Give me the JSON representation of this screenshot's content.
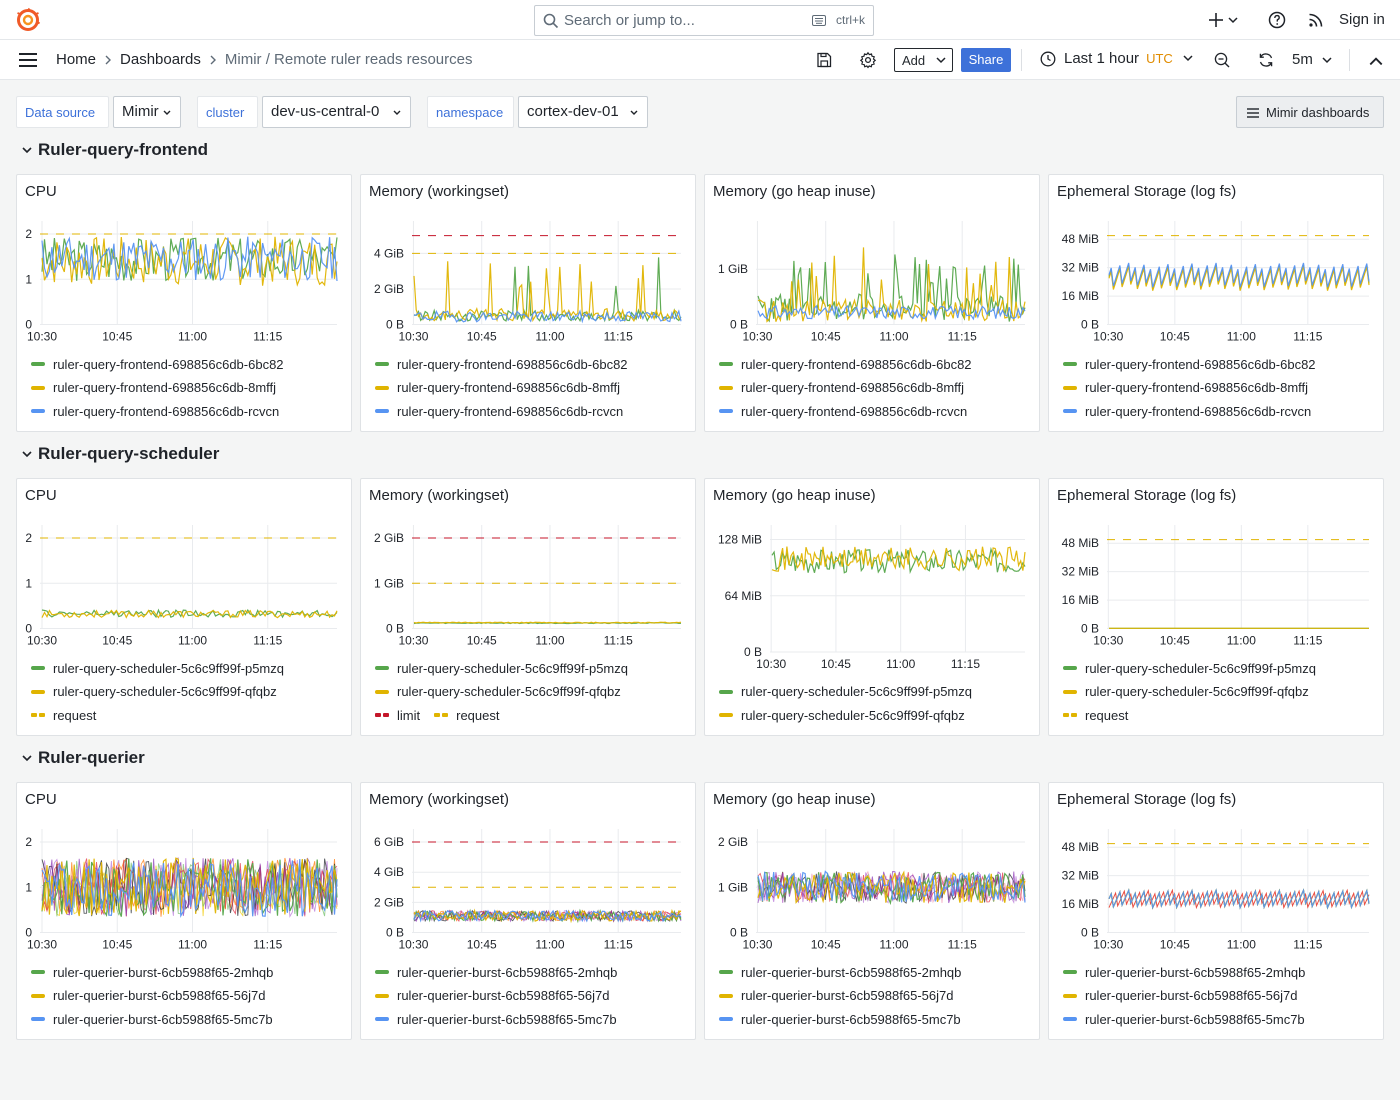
{
  "topbar": {
    "logo_icon": "grafana-logo-icon",
    "search_placeholder": "Search or jump to...",
    "search_shortcut": "ctrl+k",
    "sign_in": "Sign in"
  },
  "nav": {
    "breadcrumbs": [
      "Home",
      "Dashboards",
      "Mimir / Remote ruler reads resources"
    ],
    "add_label": "Add",
    "share_label": "Share",
    "time_range": "Last 1 hour",
    "timezone": "UTC",
    "refresh_interval": "5m"
  },
  "variables": [
    {
      "label": "Data source",
      "value": "Mimir"
    },
    {
      "label": "cluster",
      "value": "dev-us-central-0"
    },
    {
      "label": "namespace",
      "value": "cortex-dev-01"
    }
  ],
  "mimir_dashboards_label": "Mimir dashboards",
  "colors": {
    "green": "#56a64b",
    "yellow": "#e0b400",
    "blue": "#5794f2",
    "red": "#c4162a",
    "accent": "#3d71d9"
  },
  "rows": [
    {
      "title": "Ruler-query-frontend"
    },
    {
      "title": "Ruler-query-scheduler"
    },
    {
      "title": "Ruler-querier"
    }
  ],
  "panels": [
    {
      "title": "CPU",
      "legend": [
        {
          "label": "ruler-query-frontend-698856c6db-6bc82",
          "color": "#56a64b",
          "style": "solid"
        },
        {
          "label": "ruler-query-frontend-698856c6db-8mffj",
          "color": "#e0b400",
          "style": "solid"
        },
        {
          "label": "ruler-query-frontend-698856c6db-rcvcn",
          "color": "#5794f2",
          "style": "solid"
        }
      ]
    },
    {
      "title": "Memory (workingset)",
      "legend": [
        {
          "label": "ruler-query-frontend-698856c6db-6bc82",
          "color": "#56a64b",
          "style": "solid"
        },
        {
          "label": "ruler-query-frontend-698856c6db-8mffj",
          "color": "#e0b400",
          "style": "solid"
        },
        {
          "label": "ruler-query-frontend-698856c6db-rcvcn",
          "color": "#5794f2",
          "style": "solid"
        }
      ]
    },
    {
      "title": "Memory (go heap inuse)",
      "legend": [
        {
          "label": "ruler-query-frontend-698856c6db-6bc82",
          "color": "#56a64b",
          "style": "solid"
        },
        {
          "label": "ruler-query-frontend-698856c6db-8mffj",
          "color": "#e0b400",
          "style": "solid"
        },
        {
          "label": "ruler-query-frontend-698856c6db-rcvcn",
          "color": "#5794f2",
          "style": "solid"
        }
      ]
    },
    {
      "title": "Ephemeral Storage (log fs)",
      "legend": [
        {
          "label": "ruler-query-frontend-698856c6db-6bc82",
          "color": "#56a64b",
          "style": "solid"
        },
        {
          "label": "ruler-query-frontend-698856c6db-8mffj",
          "color": "#e0b400",
          "style": "solid"
        },
        {
          "label": "ruler-query-frontend-698856c6db-rcvcn",
          "color": "#5794f2",
          "style": "solid"
        }
      ]
    },
    {
      "title": "CPU",
      "legend": [
        {
          "label": "ruler-query-scheduler-5c6c9ff99f-p5mzq",
          "color": "#56a64b",
          "style": "solid"
        },
        {
          "label": "ruler-query-scheduler-5c6c9ff99f-qfqbz",
          "color": "#e0b400",
          "style": "solid"
        },
        {
          "label": "request",
          "color": "#e0b400",
          "style": "dash"
        }
      ]
    },
    {
      "title": "Memory (workingset)",
      "legend": [
        {
          "label": "ruler-query-scheduler-5c6c9ff99f-p5mzq",
          "color": "#56a64b",
          "style": "solid"
        },
        {
          "label": "ruler-query-scheduler-5c6c9ff99f-qfqbz",
          "color": "#e0b400",
          "style": "solid"
        }
      ],
      "legend_row": [
        {
          "label": "limit",
          "color": "#c4162a",
          "style": "dash"
        },
        {
          "label": "request",
          "color": "#e0b400",
          "style": "dash"
        }
      ]
    },
    {
      "title": "Memory (go heap inuse)",
      "legend": [
        {
          "label": "ruler-query-scheduler-5c6c9ff99f-p5mzq",
          "color": "#56a64b",
          "style": "solid"
        },
        {
          "label": "ruler-query-scheduler-5c6c9ff99f-qfqbz",
          "color": "#e0b400",
          "style": "solid"
        }
      ]
    },
    {
      "title": "Ephemeral Storage (log fs)",
      "legend": [
        {
          "label": "ruler-query-scheduler-5c6c9ff99f-p5mzq",
          "color": "#56a64b",
          "style": "solid"
        },
        {
          "label": "ruler-query-scheduler-5c6c9ff99f-qfqbz",
          "color": "#e0b400",
          "style": "solid"
        },
        {
          "label": "request",
          "color": "#e0b400",
          "style": "dash"
        }
      ]
    },
    {
      "title": "CPU",
      "legend": [
        {
          "label": "ruler-querier-burst-6cb5988f65-2mhqb",
          "color": "#56a64b",
          "style": "solid"
        },
        {
          "label": "ruler-querier-burst-6cb5988f65-56j7d",
          "color": "#e0b400",
          "style": "solid"
        },
        {
          "label": "ruler-querier-burst-6cb5988f65-5mc7b",
          "color": "#5794f2",
          "style": "solid"
        }
      ]
    },
    {
      "title": "Memory (workingset)",
      "legend": [
        {
          "label": "ruler-querier-burst-6cb5988f65-2mhqb",
          "color": "#56a64b",
          "style": "solid"
        },
        {
          "label": "ruler-querier-burst-6cb5988f65-56j7d",
          "color": "#e0b400",
          "style": "solid"
        },
        {
          "label": "ruler-querier-burst-6cb5988f65-5mc7b",
          "color": "#5794f2",
          "style": "solid"
        }
      ]
    },
    {
      "title": "Memory (go heap inuse)",
      "legend": [
        {
          "label": "ruler-querier-burst-6cb5988f65-2mhqb",
          "color": "#56a64b",
          "style": "solid"
        },
        {
          "label": "ruler-querier-burst-6cb5988f65-56j7d",
          "color": "#e0b400",
          "style": "solid"
        },
        {
          "label": "ruler-querier-burst-6cb5988f65-5mc7b",
          "color": "#5794f2",
          "style": "solid"
        }
      ]
    },
    {
      "title": "Ephemeral Storage (log fs)",
      "legend": [
        {
          "label": "ruler-querier-burst-6cb5988f65-2mhqb",
          "color": "#56a64b",
          "style": "solid"
        },
        {
          "label": "ruler-querier-burst-6cb5988f65-56j7d",
          "color": "#e0b400",
          "style": "solid"
        },
        {
          "label": "ruler-querier-burst-6cb5988f65-5mc7b",
          "color": "#5794f2",
          "style": "solid"
        }
      ]
    }
  ],
  "chart_data": [
    {
      "type": "line",
      "title": "CPU",
      "x_ticks": [
        "10:30",
        "10:45",
        "11:00",
        "11:15"
      ],
      "y_ticks": [
        "0",
        "1",
        "2"
      ],
      "ylim": [
        0,
        2.2
      ],
      "series": [
        {
          "name": "ruler-query-frontend-698856c6db-6bc82",
          "base": 1.45,
          "amp": 0.5,
          "seed": 3,
          "color": "#56a64b"
        },
        {
          "name": "ruler-query-frontend-698856c6db-8mffj",
          "base": 1.4,
          "amp": 0.55,
          "seed": 7,
          "color": "#e0b400"
        },
        {
          "name": "ruler-query-frontend-698856c6db-rcvcn",
          "base": 1.45,
          "amp": 0.5,
          "seed": 11,
          "color": "#5794f2"
        }
      ],
      "thresholds": [
        {
          "value": 2,
          "color": "#e0b400"
        }
      ]
    },
    {
      "type": "line",
      "title": "Memory (workingset)",
      "x_ticks": [
        "10:30",
        "10:45",
        "11:00",
        "11:15"
      ],
      "y_ticks": [
        "0 B",
        "2 GiB",
        "4 GiB"
      ],
      "ylim": [
        0,
        5.6
      ],
      "unit": "GiB",
      "series": [
        {
          "name": "ruler-query-frontend-698856c6db-6bc82",
          "base": 0.5,
          "amp": 0.3,
          "seed": 13,
          "spikes": 0.06,
          "color": "#56a64b"
        },
        {
          "name": "ruler-query-frontend-698856c6db-8mffj",
          "base": 0.55,
          "amp": 0.35,
          "seed": 17,
          "spikes": 0.08,
          "color": "#e0b400"
        },
        {
          "name": "ruler-query-frontend-698856c6db-rcvcn",
          "base": 0.45,
          "amp": 0.3,
          "seed": 19,
          "color": "#5794f2"
        }
      ],
      "thresholds": [
        {
          "value": 5,
          "color": "#c4162a"
        },
        {
          "value": 4,
          "color": "#e0b400"
        }
      ]
    },
    {
      "type": "line",
      "title": "Memory (go heap inuse)",
      "x_ticks": [
        "10:30",
        "10:45",
        "11:00",
        "11:15"
      ],
      "y_ticks": [
        "0 B",
        "1 GiB"
      ],
      "ylim": [
        0,
        1.8
      ],
      "unit": "GiB",
      "series": [
        {
          "name": "ruler-query-frontend-698856c6db-6bc82",
          "base": 0.3,
          "amp": 0.25,
          "seed": 23,
          "spikes": 0.18,
          "color": "#56a64b"
        },
        {
          "name": "ruler-query-frontend-698856c6db-8mffj",
          "base": 0.25,
          "amp": 0.2,
          "seed": 29,
          "spikes": 0.1,
          "color": "#e0b400"
        },
        {
          "name": "ruler-query-frontend-698856c6db-rcvcn",
          "base": 0.22,
          "amp": 0.12,
          "seed": 31,
          "color": "#5794f2"
        }
      ],
      "thresholds": []
    },
    {
      "type": "line",
      "title": "Ephemeral Storage (log fs)",
      "x_ticks": [
        "10:30",
        "10:45",
        "11:00",
        "11:15"
      ],
      "y_ticks": [
        "0 B",
        "16 MiB",
        "32 MiB",
        "48 MiB"
      ],
      "ylim": [
        0,
        56
      ],
      "unit": "MiB",
      "series": [
        {
          "name": "ruler-query-frontend-698856c6db-6bc82",
          "base": 27,
          "amp": 7,
          "seed": 37,
          "saw": true,
          "color": "#56a64b"
        },
        {
          "name": "ruler-query-frontend-698856c6db-8mffj",
          "base": 26,
          "amp": 7,
          "seed": 41,
          "saw": true,
          "color": "#e0b400"
        },
        {
          "name": "ruler-query-frontend-698856c6db-rcvcn",
          "base": 28,
          "amp": 7,
          "seed": 43,
          "saw": true,
          "color": "#5794f2"
        }
      ],
      "thresholds": [
        {
          "value": 50,
          "color": "#e0b400"
        }
      ]
    },
    {
      "type": "line",
      "title": "CPU",
      "x_ticks": [
        "10:30",
        "10:45",
        "11:00",
        "11:15"
      ],
      "y_ticks": [
        "0",
        "1",
        "2"
      ],
      "ylim": [
        0,
        2.2
      ],
      "series": [
        {
          "name": "ruler-query-scheduler-5c6c9ff99f-p5mzq",
          "base": 0.33,
          "amp": 0.08,
          "seed": 47,
          "color": "#56a64b"
        },
        {
          "name": "ruler-query-scheduler-5c6c9ff99f-qfqbz",
          "base": 0.32,
          "amp": 0.08,
          "seed": 53,
          "color": "#e0b400"
        }
      ],
      "thresholds": [
        {
          "value": 2,
          "color": "#e0b400"
        }
      ]
    },
    {
      "type": "line",
      "title": "Memory (workingset)",
      "x_ticks": [
        "10:30",
        "10:45",
        "11:00",
        "11:15"
      ],
      "y_ticks": [
        "0 B",
        "1 GiB",
        "2 GiB"
      ],
      "ylim": [
        0,
        2.2
      ],
      "unit": "GiB",
      "series": [
        {
          "name": "ruler-query-scheduler-5c6c9ff99f-p5mzq",
          "base": 0.12,
          "amp": 0.01,
          "seed": 59,
          "color": "#56a64b"
        },
        {
          "name": "ruler-query-scheduler-5c6c9ff99f-qfqbz",
          "base": 0.13,
          "amp": 0.01,
          "seed": 61,
          "color": "#e0b400"
        }
      ],
      "thresholds": [
        {
          "value": 2,
          "color": "#c4162a"
        },
        {
          "value": 1,
          "color": "#e0b400"
        }
      ]
    },
    {
      "type": "line",
      "title": "Memory (go heap inuse)",
      "x_ticks": [
        "10:30",
        "10:45",
        "11:00",
        "11:15"
      ],
      "y_ticks": [
        "0 B",
        "64 MiB",
        "128 MiB"
      ],
      "ylim": [
        0,
        140
      ],
      "unit": "MiB",
      "series": [
        {
          "name": "ruler-query-scheduler-5c6c9ff99f-p5mzq",
          "base": 104,
          "amp": 14,
          "seed": 67,
          "color": "#56a64b"
        },
        {
          "name": "ruler-query-scheduler-5c6c9ff99f-qfqbz",
          "base": 106,
          "amp": 14,
          "seed": 71,
          "color": "#e0b400"
        }
      ],
      "thresholds": []
    },
    {
      "type": "line",
      "title": "Ephemeral Storage (log fs)",
      "x_ticks": [
        "10:30",
        "10:45",
        "11:00",
        "11:15"
      ],
      "y_ticks": [
        "0 B",
        "16 MiB",
        "32 MiB",
        "48 MiB"
      ],
      "ylim": [
        0,
        56
      ],
      "unit": "MiB",
      "series": [
        {
          "name": "ruler-query-scheduler-5c6c9ff99f-p5mzq",
          "base": 0.1,
          "amp": 0,
          "seed": 73,
          "color": "#56a64b"
        },
        {
          "name": "ruler-query-scheduler-5c6c9ff99f-qfqbz",
          "base": 0.1,
          "amp": 0,
          "seed": 79,
          "color": "#e0b400"
        }
      ],
      "thresholds": [
        {
          "value": 50,
          "color": "#e0b400"
        }
      ]
    },
    {
      "type": "line",
      "title": "CPU",
      "x_ticks": [
        "10:30",
        "10:45",
        "11:00",
        "11:15"
      ],
      "y_ticks": [
        "0",
        "1",
        "2"
      ],
      "ylim": [
        0,
        2.2
      ],
      "series": [
        {
          "name": "ruler-querier-burst-6cb5988f65-2mhqb",
          "base": 1.0,
          "amp": 0.65,
          "seed": 83,
          "color": "#56a64b"
        },
        {
          "name": "ruler-querier-burst-6cb5988f65-56j7d",
          "base": 1.0,
          "amp": 0.65,
          "seed": 89,
          "color": "#e0b400"
        },
        {
          "name": "ruler-querier-burst-6cb5988f65-5mc7b",
          "base": 1.0,
          "amp": 0.65,
          "seed": 97,
          "color": "#5794f2"
        }
      ],
      "extra_colors": [
        "#8f3bb8",
        "#e02f44",
        "#1f2329",
        "#ff780a",
        "#b877d9",
        "#73bf69",
        "#f2cc0c"
      ],
      "thresholds": []
    },
    {
      "type": "line",
      "title": "Memory (workingset)",
      "x_ticks": [
        "10:30",
        "10:45",
        "11:00",
        "11:15"
      ],
      "y_ticks": [
        "0 B",
        "2 GiB",
        "4 GiB",
        "6 GiB"
      ],
      "ylim": [
        0,
        6.6
      ],
      "unit": "GiB",
      "series": [
        {
          "name": "ruler-querier-burst-6cb5988f65-2mhqb",
          "base": 1.1,
          "amp": 0.35,
          "seed": 101,
          "color": "#56a64b"
        },
        {
          "name": "ruler-querier-burst-6cb5988f65-56j7d",
          "base": 1.1,
          "amp": 0.35,
          "seed": 103,
          "color": "#e0b400"
        },
        {
          "name": "ruler-querier-burst-6cb5988f65-5mc7b",
          "base": 1.1,
          "amp": 0.35,
          "seed": 107,
          "color": "#5794f2"
        }
      ],
      "extra_colors": [
        "#8f3bb8",
        "#e02f44",
        "#1f2329",
        "#ff780a",
        "#b877d9"
      ],
      "thresholds": [
        {
          "value": 6,
          "color": "#c4162a"
        },
        {
          "value": 3,
          "color": "#e0b400"
        }
      ]
    },
    {
      "type": "line",
      "title": "Memory (go heap inuse)",
      "x_ticks": [
        "10:30",
        "10:45",
        "11:00",
        "11:15"
      ],
      "y_ticks": [
        "0 B",
        "1 GiB",
        "2 GiB"
      ],
      "ylim": [
        0,
        2.2
      ],
      "unit": "GiB",
      "series": [
        {
          "name": "ruler-querier-burst-6cb5988f65-2mhqb",
          "base": 1.0,
          "amp": 0.35,
          "seed": 109,
          "color": "#56a64b"
        },
        {
          "name": "ruler-querier-burst-6cb5988f65-56j7d",
          "base": 1.0,
          "amp": 0.35,
          "seed": 113,
          "color": "#e0b400"
        },
        {
          "name": "ruler-querier-burst-6cb5988f65-5mc7b",
          "base": 1.0,
          "amp": 0.35,
          "seed": 127,
          "color": "#5794f2"
        }
      ],
      "extra_colors": [
        "#8f3bb8",
        "#e02f44",
        "#1f2329",
        "#b877d9",
        "#f2a0b8"
      ],
      "thresholds": []
    },
    {
      "type": "line",
      "title": "Ephemeral Storage (log fs)",
      "x_ticks": [
        "10:30",
        "10:45",
        "11:00",
        "11:15"
      ],
      "y_ticks": [
        "0 B",
        "16 MiB",
        "32 MiB",
        "48 MiB"
      ],
      "ylim": [
        0,
        56
      ],
      "unit": "MiB",
      "series": [
        {
          "name": "ruler-querier-burst-6cb5988f65-2mhqb",
          "base": 19,
          "amp": 5,
          "seed": 131,
          "saw": true,
          "color": "#56a64b"
        },
        {
          "name": "ruler-querier-burst-6cb5988f65-56j7d",
          "base": 19,
          "amp": 5,
          "seed": 137,
          "saw": true,
          "color": "#e0b400"
        },
        {
          "name": "ruler-querier-burst-6cb5988f65-5mc7b",
          "base": 19,
          "amp": 5,
          "seed": 139,
          "saw": true,
          "color": "#5794f2"
        }
      ],
      "extra_colors": [
        "#8f3bb8",
        "#e02f44",
        "#1f2329",
        "#ff780a"
      ],
      "thresholds": [
        {
          "value": 50,
          "color": "#e0b400"
        }
      ]
    }
  ]
}
